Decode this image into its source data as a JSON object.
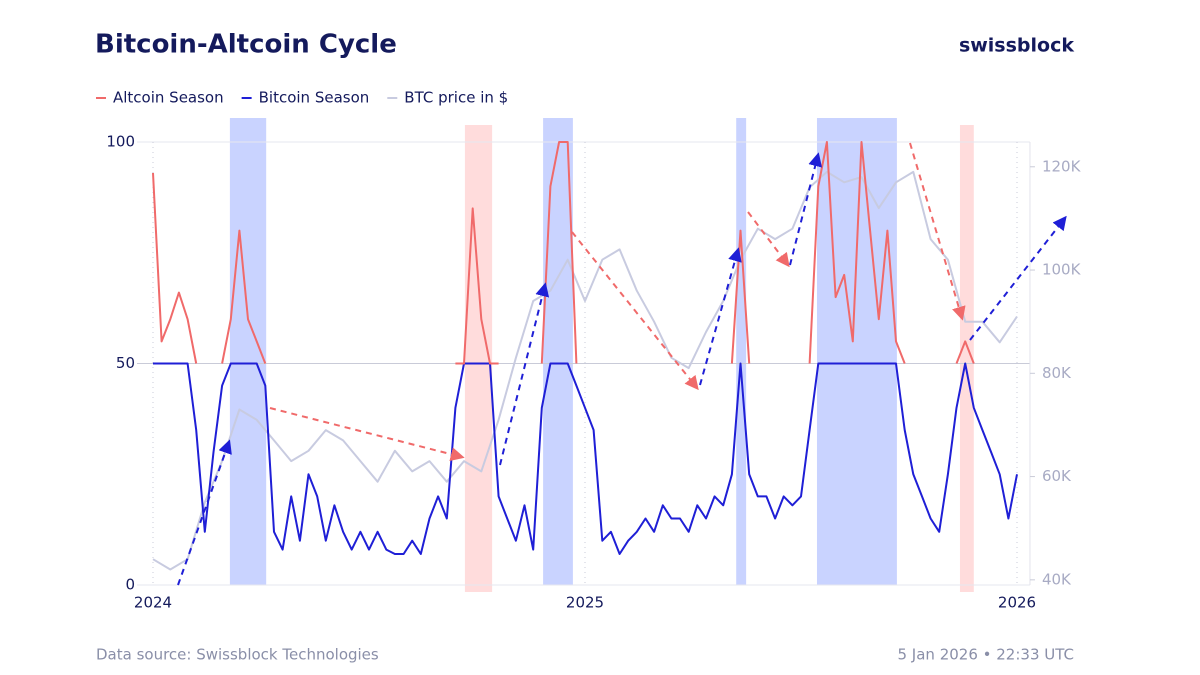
{
  "chart_data": {
    "type": "line",
    "title": "Bitcoin-Altcoin Cycle",
    "brand": "swissblock",
    "source": "Data source: Swissblock Technologies",
    "timestamp": "5 Jan 2026 • 22:33 UTC",
    "xlim": [
      2024,
      2026.03
    ],
    "xticks": [
      2024,
      2025,
      2026
    ],
    "ylim": [
      0,
      100
    ],
    "yticks": [
      0,
      50,
      100
    ],
    "y2lim": [
      39000,
      124800
    ],
    "y2ticks": [
      {
        "value": 40000,
        "label": "40K"
      },
      {
        "value": 60000,
        "label": "60K"
      },
      {
        "value": 80000,
        "label": "80K"
      },
      {
        "value": 100000,
        "label": "100K"
      },
      {
        "value": 120000,
        "label": "120K"
      }
    ],
    "x": [
      2024,
      2024.02,
      2024.04,
      2024.06,
      2024.08,
      2024.1,
      2024.12,
      2024.14,
      2024.16,
      2024.18,
      2024.2,
      2024.22,
      2024.24,
      2024.26,
      2024.28,
      2024.3,
      2024.32,
      2024.34,
      2024.36,
      2024.38,
      2024.4,
      2024.42,
      2024.44,
      2024.46,
      2024.48,
      2024.5,
      2024.52,
      2024.54,
      2024.56,
      2024.58,
      2024.6,
      2024.62,
      2024.64,
      2024.66,
      2024.68,
      2024.7,
      2024.72,
      2024.74,
      2024.76,
      2024.78,
      2024.8,
      2024.82,
      2024.84,
      2024.86,
      2024.88,
      2024.9,
      2024.92,
      2024.94,
      2024.96,
      2024.98,
      2025,
      2025.02,
      2025.04,
      2025.06,
      2025.08,
      2025.1,
      2025.12,
      2025.14,
      2025.16,
      2025.18,
      2025.2,
      2025.22,
      2025.24,
      2025.26,
      2025.28,
      2025.3,
      2025.32,
      2025.34,
      2025.36,
      2025.38,
      2025.4,
      2025.42,
      2025.44,
      2025.46,
      2025.48,
      2025.5,
      2025.52,
      2025.54,
      2025.56,
      2025.58,
      2025.6,
      2025.62,
      2025.64,
      2025.66,
      2025.68,
      2025.7,
      2025.72,
      2025.74,
      2025.76,
      2025.78,
      2025.8,
      2025.82,
      2025.84,
      2025.86,
      2025.88,
      2025.9,
      2025.92,
      2025.94,
      2025.96,
      2025.98,
      2026
    ],
    "series": [
      {
        "name": "Altcoin Season",
        "color": "#f06a6a",
        "values": [
          93,
          55,
          60,
          66,
          60,
          50,
          null,
          null,
          50,
          60,
          80,
          60,
          55,
          50,
          null,
          null,
          null,
          null,
          null,
          null,
          null,
          null,
          null,
          null,
          null,
          null,
          null,
          null,
          null,
          null,
          null,
          null,
          null,
          null,
          null,
          50,
          50,
          85,
          60,
          50,
          50,
          null,
          null,
          null,
          null,
          50,
          90,
          100,
          100,
          50,
          null,
          null,
          null,
          null,
          null,
          null,
          null,
          null,
          null,
          null,
          null,
          null,
          null,
          null,
          null,
          null,
          null,
          50,
          80,
          50,
          null,
          null,
          null,
          null,
          null,
          null,
          50,
          90,
          100,
          65,
          70,
          55,
          100,
          80,
          60,
          80,
          55,
          50,
          null,
          null,
          null,
          null,
          null,
          50,
          55,
          50,
          null,
          null,
          null,
          null,
          null
        ]
      },
      {
        "name": "Bitcoin Season",
        "color": "#1f1fd6",
        "values": [
          50,
          50,
          50,
          50,
          50,
          35,
          12,
          30,
          45,
          50,
          50,
          50,
          50,
          45,
          12,
          8,
          20,
          10,
          25,
          20,
          10,
          18,
          12,
          8,
          12,
          8,
          12,
          8,
          7,
          7,
          10,
          7,
          15,
          20,
          15,
          40,
          50,
          50,
          50,
          50,
          20,
          15,
          10,
          18,
          8,
          40,
          50,
          50,
          50,
          45,
          40,
          35,
          10,
          12,
          7,
          10,
          12,
          15,
          12,
          18,
          15,
          15,
          12,
          18,
          15,
          20,
          18,
          25,
          50,
          25,
          20,
          20,
          15,
          20,
          18,
          20,
          35,
          50,
          50,
          50,
          50,
          50,
          50,
          50,
          50,
          50,
          50,
          35,
          25,
          20,
          15,
          12,
          25,
          40,
          50,
          40,
          35,
          30,
          25,
          15,
          25
        ]
      },
      {
        "name": "BTC price in $",
        "color": "#c8cbe0",
        "axis": "y2",
        "x": [
          2024,
          2024.04,
          2024.08,
          2024.12,
          2024.16,
          2024.2,
          2024.24,
          2024.28,
          2024.32,
          2024.36,
          2024.4,
          2024.44,
          2024.48,
          2024.52,
          2024.56,
          2024.6,
          2024.64,
          2024.68,
          2024.72,
          2024.76,
          2024.8,
          2024.84,
          2024.88,
          2024.92,
          2024.96,
          2025,
          2025.04,
          2025.08,
          2025.12,
          2025.16,
          2025.2,
          2025.24,
          2025.28,
          2025.32,
          2025.36,
          2025.4,
          2025.44,
          2025.48,
          2025.52,
          2025.56,
          2025.6,
          2025.64,
          2025.68,
          2025.72,
          2025.76,
          2025.8,
          2025.84,
          2025.88,
          2025.92,
          2025.96,
          2026
        ],
        "values": [
          44000,
          42000,
          44000,
          55000,
          63000,
          73000,
          71000,
          67000,
          63000,
          65000,
          69000,
          67000,
          63000,
          59000,
          65000,
          61000,
          63000,
          59000,
          63000,
          61000,
          71000,
          83000,
          94000,
          96000,
          102000,
          94000,
          102000,
          104000,
          96000,
          90000,
          83000,
          81000,
          88000,
          94000,
          102000,
          108000,
          106000,
          108000,
          116000,
          119000,
          117000,
          118000,
          112000,
          117000,
          119000,
          106000,
          102000,
          90000,
          90000,
          86000,
          91000
        ]
      }
    ],
    "shaded_regions": [
      {
        "x": [
          2024.178,
          2024.262
        ],
        "color": "#c9d3ff"
      },
      {
        "x": [
          2024.722,
          2024.785
        ],
        "color": "#ffdcdc"
      },
      {
        "x": [
          2024.903,
          2024.972
        ],
        "color": "#c9d3ff"
      },
      {
        "x": [
          2025.35,
          2025.373
        ],
        "color": "#c9d3ff"
      },
      {
        "x": [
          2025.537,
          2025.722
        ],
        "color": "#c9d3ff"
      },
      {
        "x": [
          2025.868,
          2025.9
        ],
        "color": "#ffdcdc"
      }
    ]
  }
}
